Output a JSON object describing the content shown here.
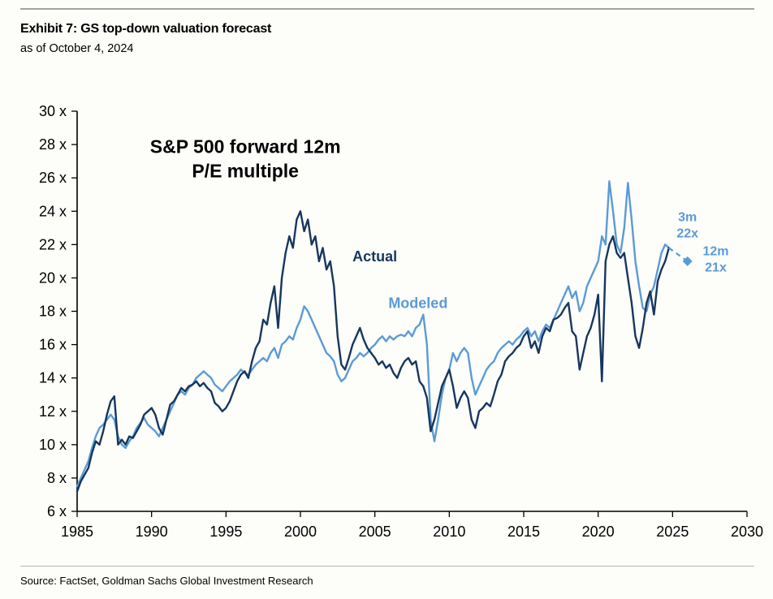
{
  "header": {
    "title": "Exhibit 7: GS top-down valuation forecast",
    "subtitle": "as of October 4, 2024"
  },
  "footer": {
    "source": "Source: FactSet, Goldman Sachs Global Investment Research"
  },
  "colors": {
    "actual": "#17365d",
    "modeled": "#5b9bd5",
    "axis": "#000000",
    "rule": "#a3a3a3"
  },
  "chart_data": {
    "type": "line",
    "title_lines": [
      "S&P 500 forward 12m",
      "P/E multiple"
    ],
    "title_pos": {
      "x": 1996.3,
      "y": 27.5
    },
    "xlabel": "",
    "ylabel": "",
    "x_range": [
      1985,
      2030
    ],
    "y_range": [
      6,
      30
    ],
    "x_ticks": [
      1985,
      1990,
      1995,
      2000,
      2005,
      2010,
      2015,
      2020,
      2025,
      2030
    ],
    "y_ticks": [
      6,
      8,
      10,
      12,
      14,
      16,
      18,
      20,
      22,
      24,
      26,
      28,
      30
    ],
    "y_tick_suffix": " x",
    "grid": false,
    "legend_position": "in-plot-labels",
    "series": [
      {
        "name": "Actual",
        "color": "#17365d",
        "x_start": 1985,
        "x_step": 0.25,
        "values": [
          7.2,
          7.8,
          8.2,
          8.6,
          9.5,
          10.2,
          10,
          10.8,
          11.8,
          12.6,
          12.9,
          10,
          10.3,
          10,
          10.5,
          10.4,
          10.8,
          11.2,
          11.8,
          12,
          12.2,
          11.8,
          11,
          10.6,
          11.5,
          12.4,
          12.6,
          13,
          13.4,
          13.2,
          13.5,
          13.6,
          13.8,
          13.5,
          13.7,
          13.4,
          13.2,
          12.5,
          12.3,
          12,
          12.2,
          12.6,
          13.2,
          13.8,
          14.2,
          14.4,
          14,
          15,
          15.8,
          16.2,
          17.5,
          17.2,
          18.5,
          19.5,
          17,
          20,
          21.5,
          22.5,
          21.8,
          23.5,
          24,
          22.8,
          23.5,
          22,
          22.5,
          21,
          21.8,
          20.5,
          21,
          19.5,
          16.5,
          14.8,
          14.5,
          15.2,
          16,
          16.5,
          17,
          16.3,
          15.8,
          15.5,
          15.2,
          14.8,
          15,
          14.6,
          14.8,
          14.3,
          14,
          14.6,
          15,
          15.2,
          14.8,
          15,
          13.8,
          13.5,
          12.8,
          10.8,
          11.5,
          12.5,
          13.5,
          14,
          14.5,
          13.5,
          12.2,
          12.8,
          13.2,
          12.8,
          11.5,
          11,
          12,
          12.2,
          12.5,
          12.3,
          13,
          13.8,
          14.2,
          15,
          15.3,
          15.5,
          15.8,
          16,
          16.5,
          16.8,
          15.8,
          16.2,
          15.5,
          16.5,
          17,
          16.8,
          17.5,
          17.6,
          17.8,
          18.2,
          18.5,
          16.8,
          16.5,
          14.5,
          15.5,
          16.5,
          17,
          17.8,
          19,
          13.8,
          21,
          22,
          22.5,
          21.5,
          21.2,
          21.5,
          20,
          18.5,
          16.5,
          15.8,
          17,
          18.5,
          19.2,
          17.8,
          19.8,
          20.5,
          21,
          21.8
        ]
      },
      {
        "name": "Modeled",
        "color": "#5b9bd5",
        "x_start": 1985,
        "x_step": 0.25,
        "values": [
          7.5,
          8,
          8.5,
          9,
          9.8,
          10.5,
          11,
          11.2,
          11.5,
          11.8,
          11.5,
          10.5,
          10,
          9.8,
          10.2,
          10.5,
          11,
          11.3,
          11.6,
          11.2,
          11,
          10.8,
          10.5,
          11,
          11.5,
          12,
          12.5,
          13,
          13.2,
          13,
          13.4,
          13.6,
          14,
          14.2,
          14.4,
          14.2,
          14,
          13.6,
          13.4,
          13.2,
          13.5,
          13.8,
          14,
          14.2,
          14.5,
          14.3,
          14.2,
          14.5,
          14.8,
          15,
          15.2,
          15,
          15.5,
          15.8,
          15.2,
          16,
          16.2,
          16.5,
          16.3,
          17,
          17.5,
          18.3,
          18,
          17.5,
          17,
          16.5,
          16,
          15.5,
          15.3,
          15,
          14.2,
          13.8,
          14,
          14.5,
          15,
          15.2,
          15.5,
          15.3,
          15.5,
          15.8,
          16,
          16.3,
          16.5,
          16.2,
          16.5,
          16.3,
          16.5,
          16.6,
          16.5,
          16.8,
          16.5,
          17,
          17.2,
          17.8,
          16,
          11.5,
          10.2,
          11.5,
          13,
          14,
          14.5,
          15.5,
          15,
          15.5,
          15.8,
          15.5,
          14,
          13,
          13.5,
          14,
          14.5,
          14.8,
          15,
          15.5,
          15.8,
          16,
          16.2,
          16,
          16.3,
          16.5,
          16.8,
          17,
          16.5,
          16.8,
          16.2,
          16.8,
          17.2,
          17,
          17.5,
          18,
          18.5,
          19,
          19.5,
          18.8,
          19.2,
          18,
          18.5,
          19.5,
          20,
          20.5,
          21,
          22.5,
          22,
          25.8,
          24,
          22,
          21.5,
          23,
          25.7,
          23.5,
          21,
          19.5,
          18.2,
          18,
          19,
          19.5,
          20.5,
          21.5,
          22,
          21.8
        ]
      }
    ],
    "forecast": {
      "color": "#5b9bd5",
      "style": "dashed",
      "x": [
        2024.75,
        2026
      ],
      "values": [
        21.8,
        21
      ],
      "marker": "diamond"
    },
    "series_labels": [
      {
        "text": "Actual",
        "x": 2005,
        "y": 21,
        "color": "#17365d"
      },
      {
        "text": "Modeled",
        "x": 2007.9,
        "y": 18.2,
        "color": "#5b9bd5"
      }
    ],
    "annotations": [
      {
        "lines": [
          "3m",
          "22x"
        ],
        "x": 2026,
        "y": 23.4,
        "color": "#5b9bd5"
      },
      {
        "lines": [
          "12m",
          "21x"
        ],
        "x": 2027.9,
        "y": 21.35,
        "color": "#5b9bd5"
      }
    ]
  }
}
